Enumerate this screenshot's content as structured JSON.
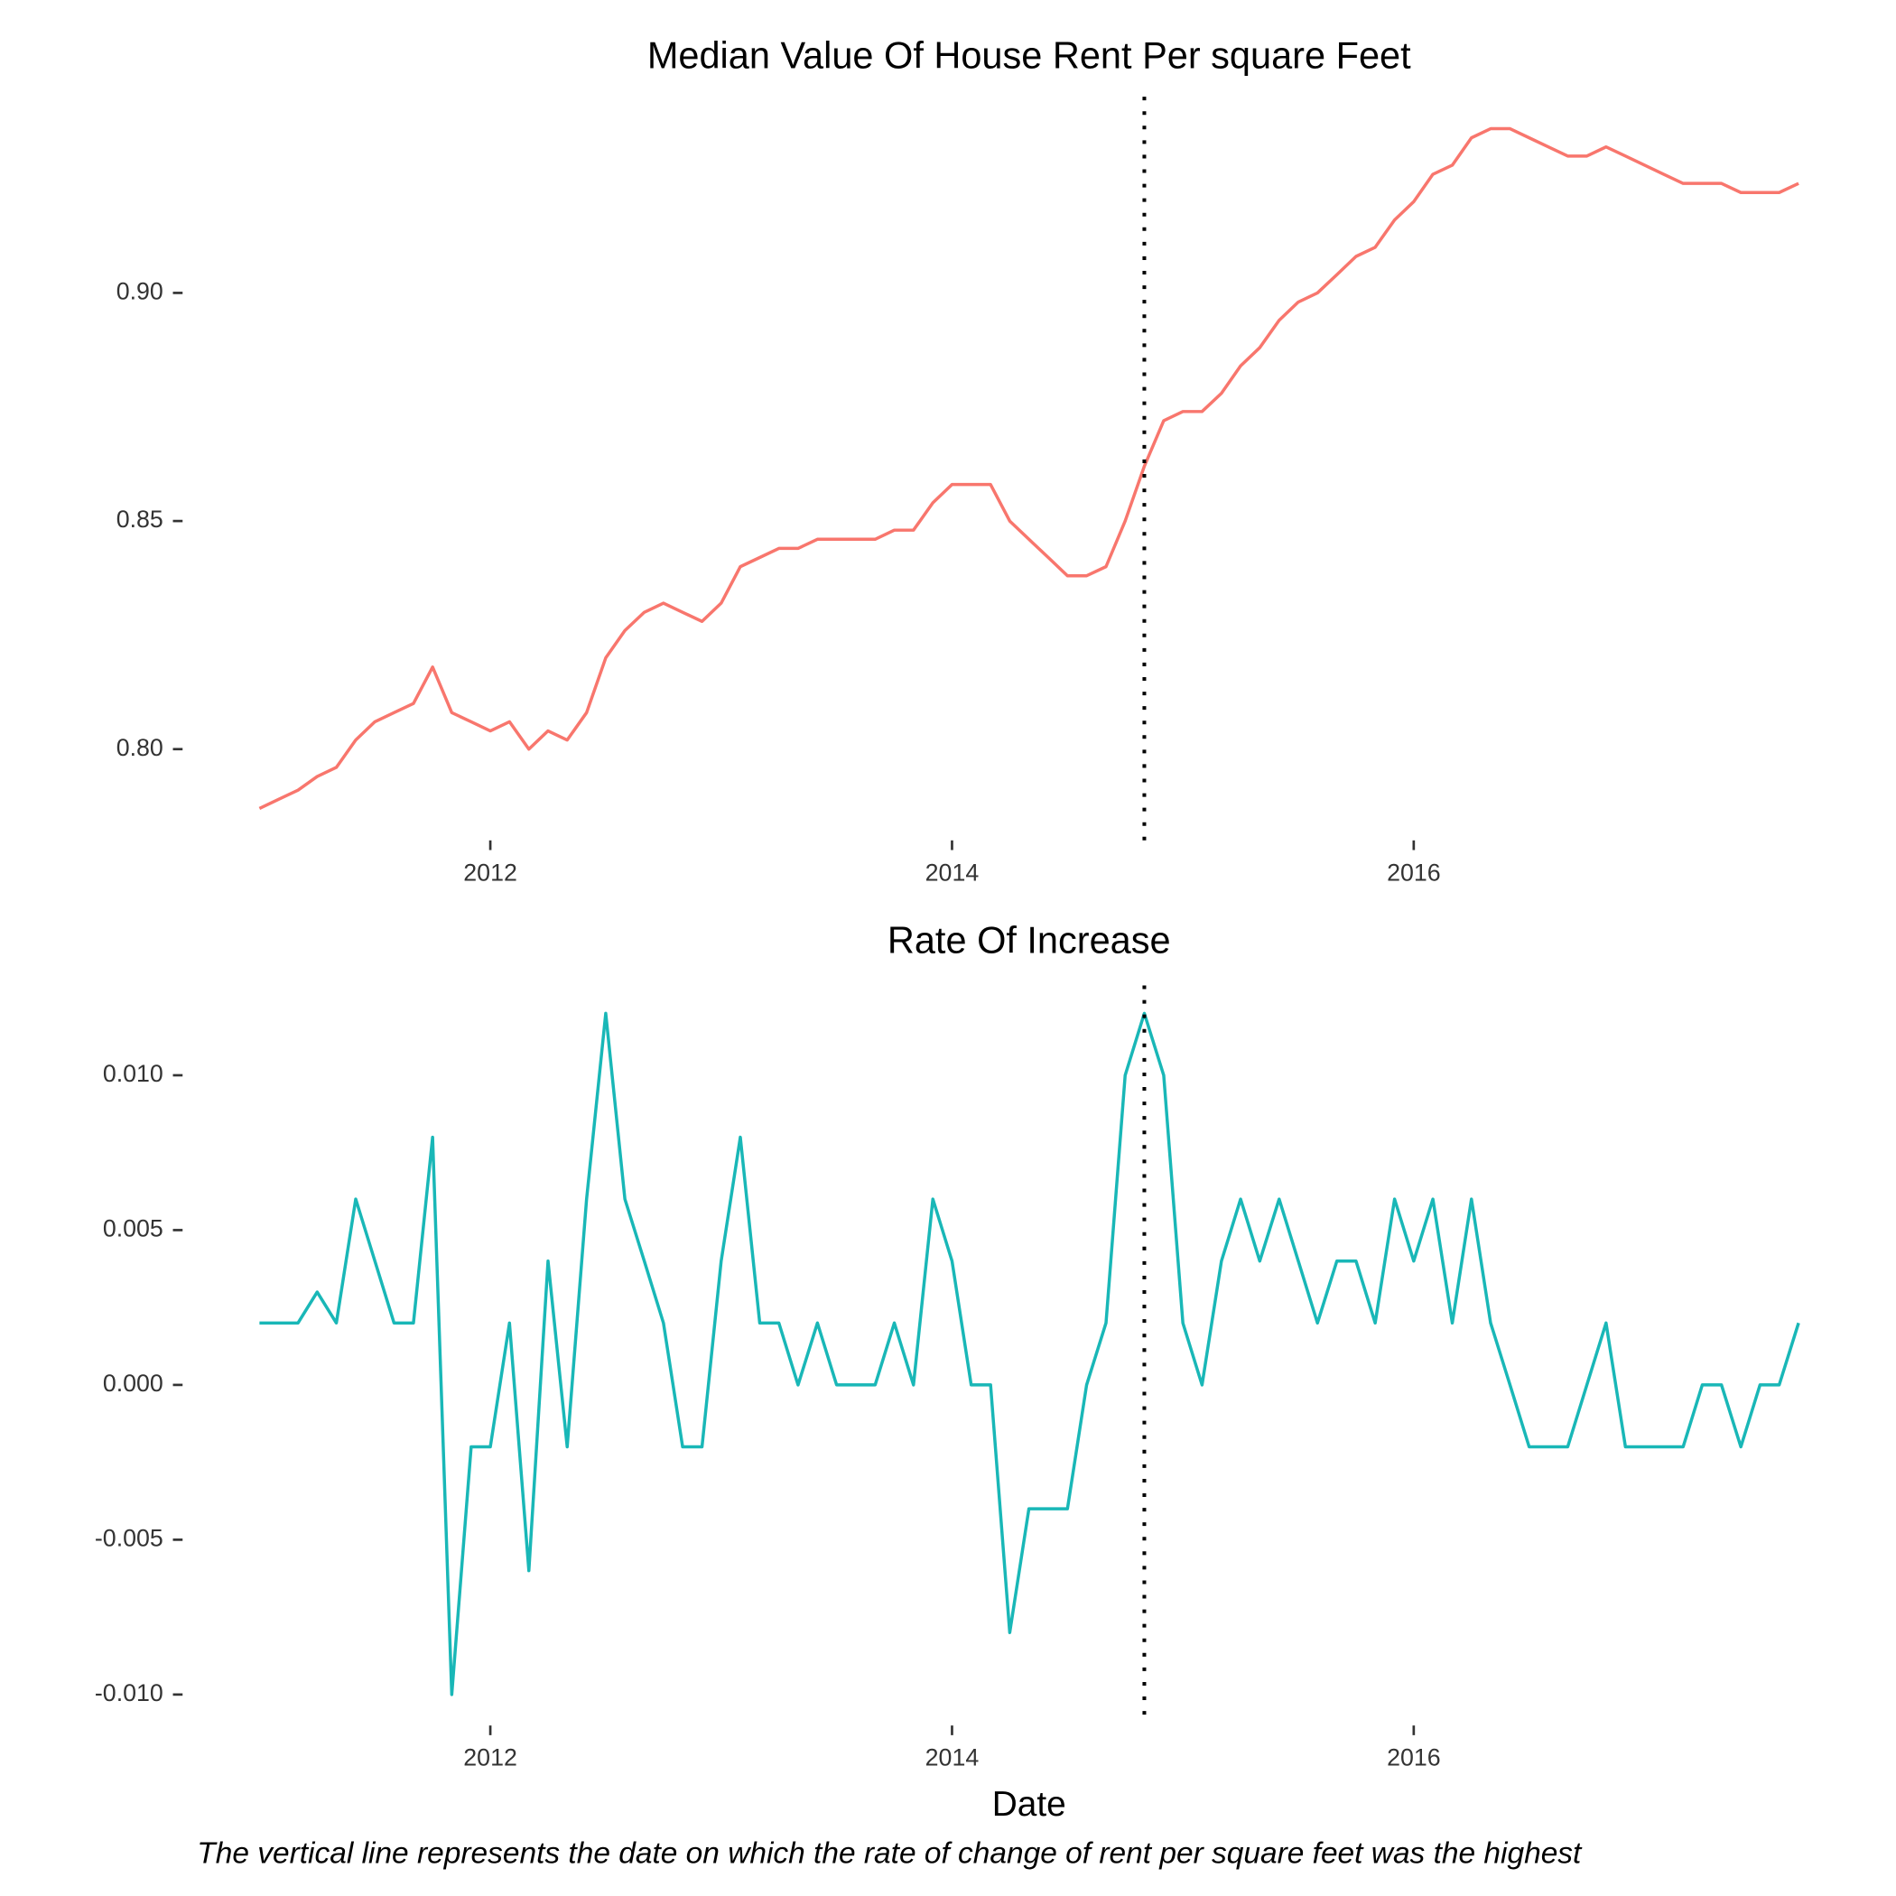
{
  "caption": "The vertical line represents the date on which the rate of change of rent per square feet was the highest",
  "chart_data": [
    {
      "type": "line",
      "title": "Median Value Of House Rent Per square Feet",
      "x": [
        2011,
        2011.083,
        2011.167,
        2011.25,
        2011.333,
        2011.417,
        2011.5,
        2011.583,
        2011.667,
        2011.75,
        2011.833,
        2011.917,
        2012,
        2012.083,
        2012.167,
        2012.25,
        2012.333,
        2012.417,
        2012.5,
        2012.583,
        2012.667,
        2012.75,
        2012.833,
        2012.917,
        2013,
        2013.083,
        2013.167,
        2013.25,
        2013.333,
        2013.417,
        2013.5,
        2013.583,
        2013.667,
        2013.75,
        2013.833,
        2013.917,
        2014,
        2014.083,
        2014.167,
        2014.25,
        2014.333,
        2014.417,
        2014.5,
        2014.583,
        2014.667,
        2014.75,
        2014.833,
        2014.917,
        2015,
        2015.083,
        2015.167,
        2015.25,
        2015.333,
        2015.417,
        2015.5,
        2015.583,
        2015.667,
        2015.75,
        2015.833,
        2015.917,
        2016,
        2016.083,
        2016.167,
        2016.25,
        2016.333,
        2016.417,
        2016.5,
        2016.583,
        2016.667,
        2016.75,
        2016.833,
        2016.917,
        2017,
        2017.083,
        2017.167,
        2017.25,
        2017.333,
        2017.417,
        2017.5,
        2017.583,
        2017.667
      ],
      "series": [
        {
          "color": "#f8766d",
          "values": [
            0.787,
            0.789,
            0.791,
            0.794,
            0.796,
            0.802,
            0.806,
            0.808,
            0.81,
            0.818,
            0.808,
            0.806,
            0.804,
            0.806,
            0.8,
            0.804,
            0.802,
            0.808,
            0.82,
            0.826,
            0.83,
            0.832,
            0.83,
            0.828,
            0.832,
            0.84,
            0.842,
            0.844,
            0.844,
            0.846,
            0.846,
            0.846,
            0.846,
            0.848,
            0.848,
            0.854,
            0.858,
            0.858,
            0.858,
            0.85,
            0.846,
            0.842,
            0.838,
            0.838,
            0.84,
            0.85,
            0.862,
            0.872,
            0.874,
            0.874,
            0.878,
            0.884,
            0.888,
            0.894,
            0.898,
            0.9,
            0.904,
            0.908,
            0.91,
            0.916,
            0.92,
            0.926,
            0.928,
            0.934,
            0.936,
            0.936,
            0.934,
            0.932,
            0.93,
            0.93,
            0.932,
            0.93,
            0.928,
            0.926,
            0.924,
            0.924,
            0.924,
            0.922,
            0.922,
            0.922,
            0.924
          ]
        }
      ],
      "xlim": [
        2010.667,
        2018
      ],
      "xticks": [
        2012,
        2014,
        2016
      ],
      "ylim": [
        0.78,
        0.943
      ],
      "yticks": [
        {
          "value": 0.8,
          "label": "0.80"
        },
        0.85,
        {
          "value": 0.9,
          "label": "0.90"
        }
      ],
      "vline": 2014.833
    },
    {
      "type": "line",
      "title": "Rate Of Increase",
      "x_label": "Date",
      "x": [
        2011,
        2011.083,
        2011.167,
        2011.25,
        2011.333,
        2011.417,
        2011.5,
        2011.583,
        2011.667,
        2011.75,
        2011.833,
        2011.917,
        2012,
        2012.083,
        2012.167,
        2012.25,
        2012.333,
        2012.417,
        2012.5,
        2012.583,
        2012.667,
        2012.75,
        2012.833,
        2012.917,
        2013,
        2013.083,
        2013.167,
        2013.25,
        2013.333,
        2013.417,
        2013.5,
        2013.583,
        2013.667,
        2013.75,
        2013.833,
        2013.917,
        2014,
        2014.083,
        2014.167,
        2014.25,
        2014.333,
        2014.417,
        2014.5,
        2014.583,
        2014.667,
        2014.75,
        2014.833,
        2014.917,
        2015,
        2015.083,
        2015.167,
        2015.25,
        2015.333,
        2015.417,
        2015.5,
        2015.583,
        2015.667,
        2015.75,
        2015.833,
        2015.917,
        2016,
        2016.083,
        2016.167,
        2016.25,
        2016.333,
        2016.417,
        2016.5,
        2016.583,
        2016.667,
        2016.75,
        2016.833,
        2016.917,
        2017,
        2017.083,
        2017.167,
        2017.25,
        2017.333,
        2017.417,
        2017.5,
        2017.583,
        2017.667
      ],
      "series": [
        {
          "color": "#19b7b7",
          "values": [
            0.002,
            0.002,
            0.002,
            0.003,
            0.002,
            0.006,
            0.004,
            0.002,
            0.002,
            0.008,
            -0.01,
            -0.002,
            -0.002,
            0.002,
            -0.006,
            0.004,
            -0.002,
            0.006,
            0.012,
            0.006,
            0.004,
            0.002,
            -0.002,
            -0.002,
            0.004,
            0.008,
            0.002,
            0.002,
            0,
            0.002,
            0,
            0,
            0,
            0.002,
            0,
            0.006,
            0.004,
            0,
            0,
            -0.008,
            -0.004,
            -0.004,
            -0.004,
            0,
            0.002,
            0.01,
            0.012,
            0.01,
            0.002,
            0,
            0.004,
            0.006,
            0.004,
            0.006,
            0.004,
            0.002,
            0.004,
            0.004,
            0.002,
            0.006,
            0.004,
            0.006,
            0.002,
            0.006,
            0.002,
            0,
            -0.002,
            -0.002,
            -0.002,
            0,
            0.002,
            -0.002,
            -0.002,
            -0.002,
            -0.002,
            0,
            0,
            -0.002,
            0,
            0,
            0.002
          ]
        }
      ],
      "xlim": [
        2010.667,
        2018
      ],
      "xticks": [
        2012,
        2014,
        2016
      ],
      "ylim": [
        -0.011,
        0.0129
      ],
      "yticks": [
        {
          "value": -0.01,
          "label": "-0.010"
        },
        {
          "value": -0.005,
          "label": "-0.005"
        },
        {
          "value": 0,
          "label": "0.000"
        },
        {
          "value": 0.005,
          "label": "0.005"
        },
        {
          "value": 0.01,
          "label": "0.010"
        }
      ],
      "vline": 2014.833
    }
  ]
}
